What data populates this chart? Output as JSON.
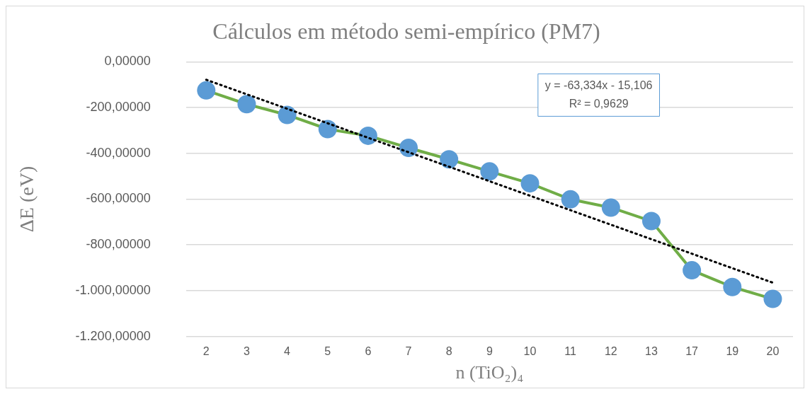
{
  "chart_data": {
    "type": "line",
    "title": "Cálculos em método semi-empírico (PM7)",
    "xlabel": "n (TiO₂)₄",
    "ylabel": "ΔE (eV)",
    "categories": [
      "2",
      "3",
      "4",
      "5",
      "6",
      "7",
      "8",
      "9",
      "10",
      "11",
      "12",
      "13",
      "17",
      "19",
      "20"
    ],
    "series": [
      {
        "color": "#70ad47",
        "colors": [
          "#5b9bd5",
          "#5b9bd5",
          "#5b9bd5",
          "#5b9bd5",
          "#5b9bd5",
          "#5b9bd5",
          "#5b9bd5",
          "#5b9bd5",
          "#5b9bd5",
          "#5b9bd5",
          "#5b9bd5",
          "#5b9bd5",
          "#5b9bd5",
          "#5b9bd5",
          "#5b9bd5"
        ],
        "marker": "circle",
        "line_style": "solid",
        "values": [
          -125,
          -185,
          -232,
          -294,
          -323,
          -376,
          -426,
          -479,
          -531,
          -601,
          -637,
          -696,
          -911,
          -984,
          -1036
        ]
      },
      {
        "type": "line",
        "color": "#000000",
        "marker": "none",
        "line_style": "dotted",
        "values": [
          -78.4,
          -141.8,
          -205.1,
          -268.4,
          -331.8,
          -395.1,
          -458.4,
          -521.8,
          -585.1,
          -648.4,
          -711.8,
          -775.1,
          -838.4,
          -901.8,
          -965.1
        ]
      }
    ],
    "ylim": [
      -1200,
      0
    ],
    "yticks": [
      {
        "value": -1200,
        "label": "-1.200,00000"
      },
      {
        "value": -1000,
        "label": "-1.000,00000"
      },
      {
        "value": -800,
        "label": "-800,00000"
      },
      {
        "value": -600,
        "label": "-600,00000"
      },
      {
        "value": -400,
        "label": "-400,00000"
      },
      {
        "value": -200,
        "label": "-200,00000"
      },
      {
        "value": 0,
        "label": "0,00000"
      }
    ],
    "grid": "y",
    "legend": false,
    "annotations": [
      "y = -63,334x - 15,106",
      "R² = 0,9629"
    ]
  }
}
